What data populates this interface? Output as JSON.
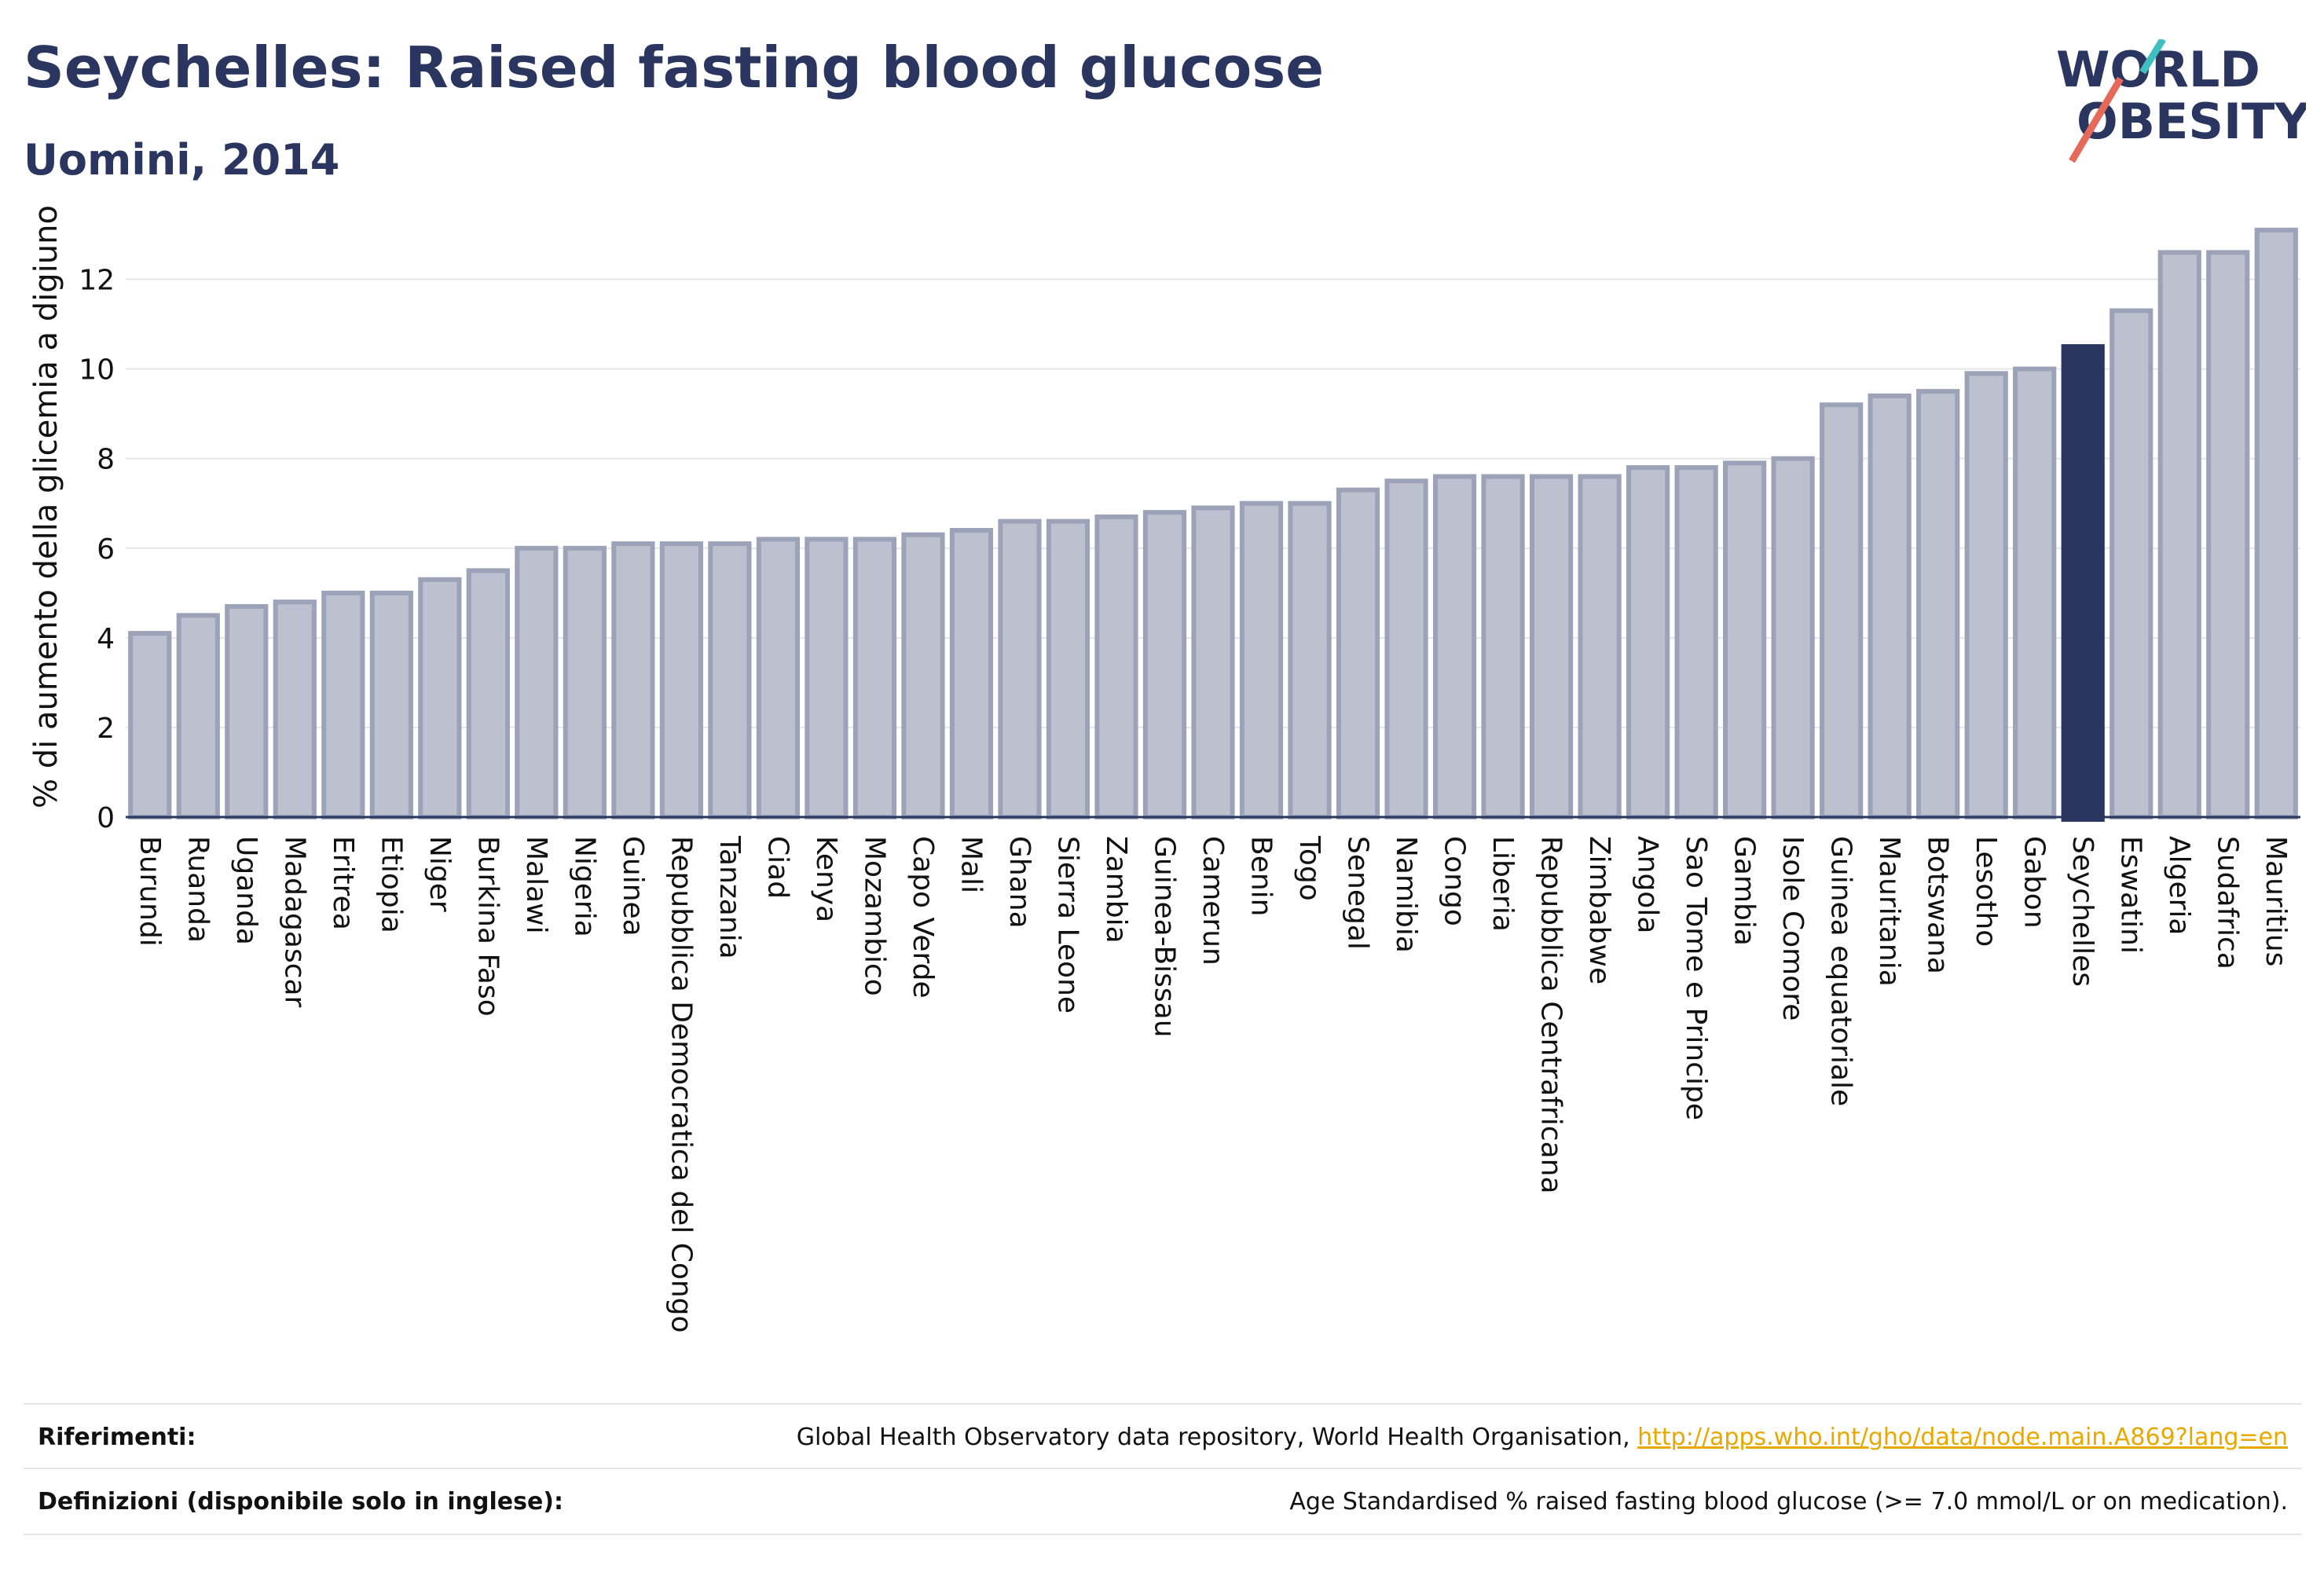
{
  "title": "Seychelles: Raised fasting blood glucose",
  "subtitle": "Uomini, 2014",
  "logo": {
    "line1": "WORLD",
    "line2": "OBESITY",
    "icon": "world-obesity-logo"
  },
  "colors": {
    "bar": "#bcc0cf",
    "bar_stroke": "#9ca2b8",
    "highlight": "#2a3560",
    "grid": "#e6e6e6",
    "link": "#e9a800"
  },
  "chart_data": {
    "type": "bar",
    "ylabel": "% di aumento della glicemia a digiuno",
    "ylim": [
      0,
      13.5
    ],
    "yticks": [
      0,
      2,
      4,
      6,
      8,
      10,
      12
    ],
    "grid": true,
    "highlight": "Seychelles",
    "categories": [
      "Burundi",
      "Ruanda",
      "Uganda",
      "Madagascar",
      "Eritrea",
      "Etiopia",
      "Niger",
      "Burkina Faso",
      "Malawi",
      "Nigeria",
      "Guinea",
      "Repubblica Democratica del Congo",
      "Tanzania",
      "Ciad",
      "Kenya",
      "Mozambico",
      "Capo Verde",
      "Mali",
      "Ghana",
      "Sierra Leone",
      "Zambia",
      "Guinea-Bissau",
      "Camerun",
      "Benin",
      "Togo",
      "Senegal",
      "Namibia",
      "Congo",
      "Liberia",
      "Repubblica Centrafricana",
      "Zimbabwe",
      "Angola",
      "Sao Tome e Principe",
      "Gambia",
      "Isole Comore",
      "Guinea equatoriale",
      "Mauritania",
      "Botswana",
      "Lesotho",
      "Gabon",
      "Seychelles",
      "Eswatini",
      "Algeria",
      "Sudafrica",
      "Mauritius"
    ],
    "values": [
      4.1,
      4.5,
      4.7,
      4.8,
      5.0,
      5.0,
      5.3,
      5.5,
      6.0,
      6.0,
      6.1,
      6.1,
      6.1,
      6.2,
      6.2,
      6.2,
      6.3,
      6.4,
      6.6,
      6.6,
      6.7,
      6.8,
      6.9,
      7.0,
      7.0,
      7.3,
      7.5,
      7.6,
      7.6,
      7.6,
      7.6,
      7.8,
      7.8,
      7.9,
      8.0,
      9.2,
      9.4,
      9.5,
      9.9,
      10.0,
      10.5,
      11.3,
      12.6,
      12.6,
      13.1
    ]
  },
  "footer": {
    "references_label": "Riferimenti:",
    "references_text": "Global Health Observatory data repository, World Health Organisation, ",
    "references_link": "http://apps.who.int/gho/data/node.main.A869?lang=en",
    "definitions_label": "Definizioni (disponibile solo in inglese):",
    "definitions_text": "Age Standardised % raised fasting blood glucose (>= 7.0 mmol/L or on medication)."
  }
}
